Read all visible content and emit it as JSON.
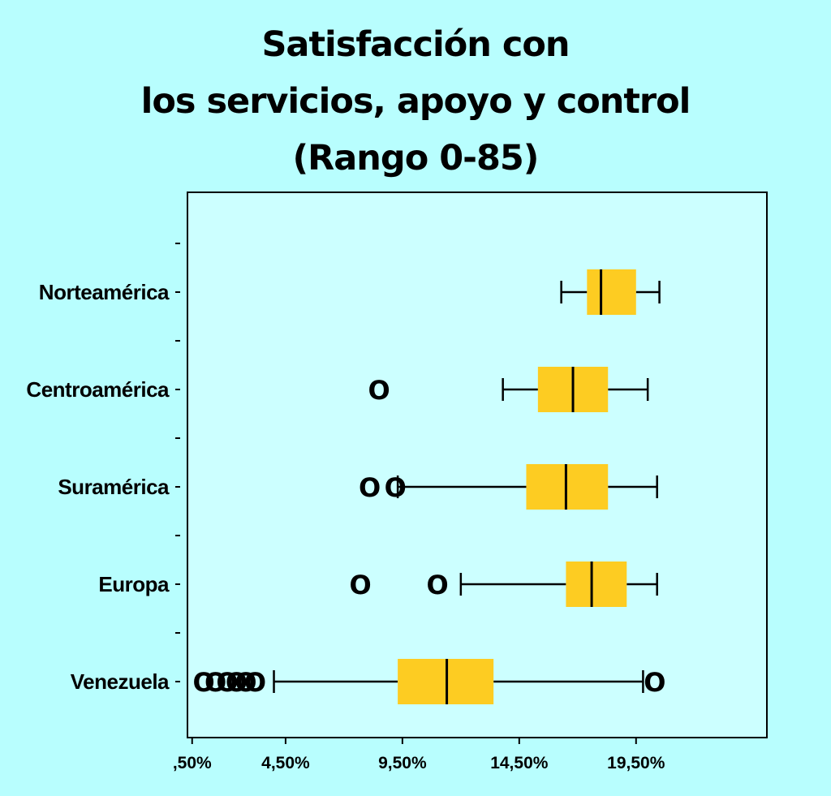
{
  "chart_data": {
    "type": "boxplot",
    "orientation": "horizontal",
    "title_lines": [
      "Satisfacción con",
      "los servicios, apoyo y control",
      "(Rango 0-85)"
    ],
    "x_tick_labels": [
      ",50%",
      "4,50%",
      "9,50%",
      "14,50%",
      "19,50%"
    ],
    "x_tick_values": [
      0.5,
      4.5,
      9.5,
      14.5,
      19.5
    ],
    "xlim": [
      0.3,
      25.1
    ],
    "colors": {
      "box": "#fdcc22",
      "background": "#b8fefe",
      "plot_background": "#ccffff",
      "line": "#000000"
    },
    "outlier_symbol": "O",
    "categories": [
      {
        "name": "Norteamérica",
        "whisker_low": 16.3,
        "q1": 17.4,
        "median": 18.0,
        "q3": 19.5,
        "whisker_high": 20.5,
        "outliers": []
      },
      {
        "name": "Centroamérica",
        "whisker_low": 13.8,
        "q1": 15.3,
        "median": 16.8,
        "q3": 18.3,
        "whisker_high": 20.0,
        "outliers": [
          8.5
        ]
      },
      {
        "name": "Suramérica",
        "whisker_low": 9.3,
        "q1": 14.8,
        "median": 16.5,
        "q3": 18.3,
        "whisker_high": 20.4,
        "outliers": [
          8.1,
          9.2
        ]
      },
      {
        "name": "Europa",
        "whisker_low": 12.0,
        "q1": 16.5,
        "median": 17.6,
        "q3": 19.1,
        "whisker_high": 20.4,
        "outliers": [
          7.7,
          11.0
        ]
      },
      {
        "name": "Venezuela",
        "whisker_low": 4.0,
        "q1": 9.3,
        "median": 11.4,
        "q3": 13.4,
        "whisker_high": 19.8,
        "outliers": [
          1.0,
          1.5,
          2.0,
          2.4,
          2.8,
          3.2,
          20.3
        ]
      }
    ]
  }
}
